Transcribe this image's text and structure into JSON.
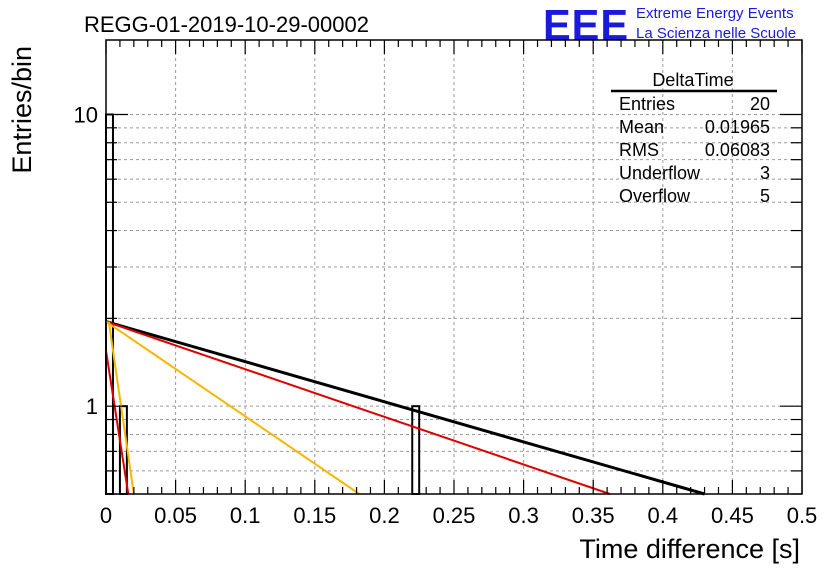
{
  "logo": {
    "mark": "EEE",
    "line1": "Extreme Energy Events",
    "line2": "La Scienza nelle Scuole",
    "color": "#1a1adc"
  },
  "stats": {
    "title": "DeltaTime",
    "rows": [
      {
        "label": "Entries",
        "value": "20"
      },
      {
        "label": "Mean",
        "value": "0.01965"
      },
      {
        "label": "RMS",
        "value": "0.06083"
      },
      {
        "label": "Underflow",
        "value": "3"
      },
      {
        "label": "Overflow",
        "value": "5"
      }
    ]
  },
  "chart_data": {
    "type": "bar",
    "title": "REGG-01-2019-10-29-00002",
    "xlabel": "Time difference [s]",
    "ylabel": "Entries/bin",
    "xlim": [
      0,
      0.5
    ],
    "ylim": [
      0.5,
      18
    ],
    "yscale": "log",
    "grid": true,
    "legend_position": "top-right",
    "xticks": [
      {
        "value": 0,
        "label": "0"
      },
      {
        "value": 0.05,
        "label": "0.05"
      },
      {
        "value": 0.1,
        "label": "0.1"
      },
      {
        "value": 0.15,
        "label": "0.15"
      },
      {
        "value": 0.2,
        "label": "0.2"
      },
      {
        "value": 0.25,
        "label": "0.25"
      },
      {
        "value": 0.3,
        "label": "0.3"
      },
      {
        "value": 0.35,
        "label": "0.35"
      },
      {
        "value": 0.4,
        "label": "0.4"
      },
      {
        "value": 0.45,
        "label": "0.45"
      },
      {
        "value": 0.5,
        "label": "0.5"
      }
    ],
    "yticks": [
      {
        "value": 1,
        "label": "1"
      },
      {
        "value": 10,
        "label": "10"
      }
    ],
    "histogram": {
      "bin_width": 0.005,
      "bins": [
        {
          "x_low": 0.0,
          "count": 10
        },
        {
          "x_low": 0.01,
          "count": 1
        },
        {
          "x_low": 0.22,
          "count": 1
        }
      ],
      "color": "#000000"
    },
    "series": [
      {
        "color": "#000000",
        "width": 3,
        "points": [
          [
            0.0,
            1.95
          ],
          [
            0.43,
            0.5
          ]
        ]
      },
      {
        "color": "#dd0000",
        "width": 2,
        "points": [
          [
            0.0,
            1.95
          ],
          [
            0.362,
            0.5
          ]
        ]
      },
      {
        "color": "#f5b800",
        "width": 2,
        "points": [
          [
            0.0,
            1.95
          ],
          [
            0.182,
            0.5
          ]
        ]
      },
      {
        "color": "#f5b800",
        "width": 2,
        "points": [
          [
            0.002,
            1.95
          ],
          [
            0.02,
            0.5
          ]
        ]
      },
      {
        "color": "#dd0000",
        "width": 2,
        "points": [
          [
            0.0,
            1.55
          ],
          [
            0.016,
            0.5
          ]
        ]
      }
    ]
  }
}
